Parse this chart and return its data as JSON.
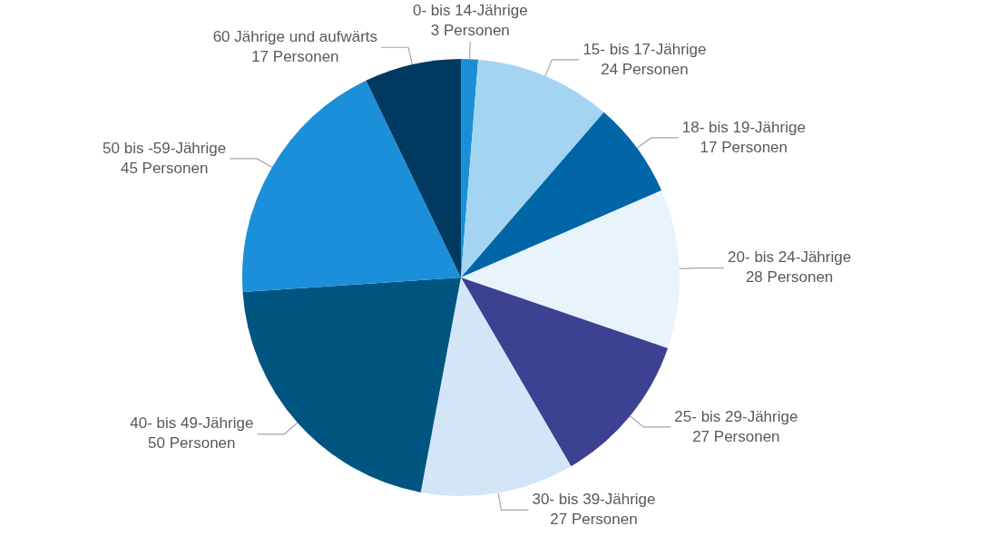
{
  "chart_data": {
    "type": "pie",
    "categories": [
      "0- bis 14-Jährige",
      "15- bis 17-Jährige",
      "18- bis 19-Jährige",
      "20- bis 24-Jährige",
      "25- bis 29-Jährige",
      "30- bis 39-Jährige",
      "40- bis 49-Jährige",
      "50 bis -59-Jährige",
      "60 Jährige und aufwärts"
    ],
    "values": [
      3,
      24,
      17,
      28,
      27,
      27,
      50,
      45,
      17
    ],
    "value_labels": [
      "3 Personen",
      "24 Personen",
      "17 Personen",
      "28 Personen",
      "27 Personen",
      "27 Personen",
      "50 Personen",
      "45 Personen",
      "17 Personen"
    ],
    "colors": [
      "#1a8fd8",
      "#a3d4f2",
      "#0066a8",
      "#e8f3fc",
      "#3c4192",
      "#d3e6f8",
      "#005580",
      "#1c8fdb",
      "#003a60"
    ],
    "legend": false
  }
}
